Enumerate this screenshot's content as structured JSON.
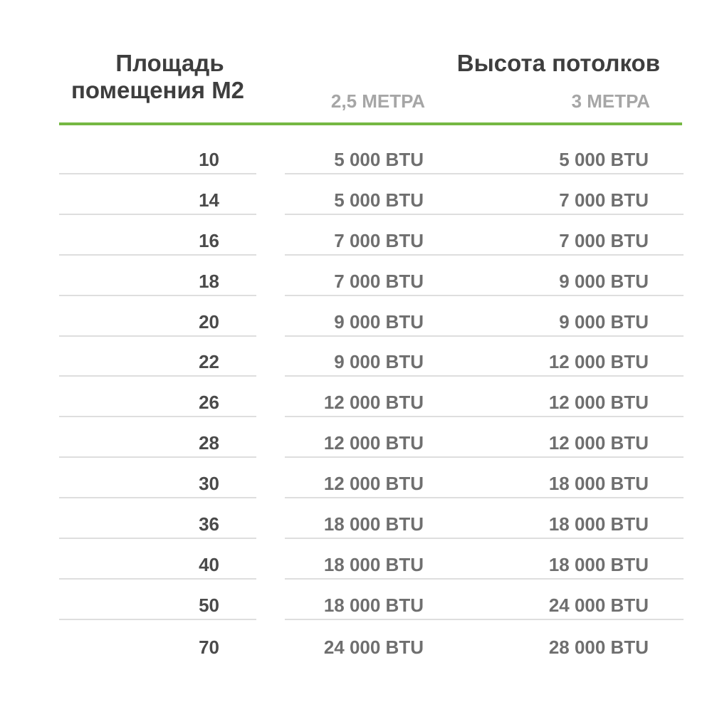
{
  "chart_data": {
    "type": "table",
    "header": {
      "area_col_title": "Площадь помещения М2",
      "area_col_title_lines": [
        "Площадь",
        "помещения М2"
      ],
      "group_title": "Высота потолков",
      "subcolumns": [
        "2,5 МЕТРА",
        "3 МЕТРА"
      ]
    },
    "columns": [
      "Площадь помещения М2",
      "2,5 МЕТРА",
      "3 МЕТРА"
    ],
    "rows": [
      {
        "area": "10",
        "btu_25m": "5 000 BTU",
        "btu_3m": "5 000 BTU"
      },
      {
        "area": "14",
        "btu_25m": "5 000 BTU",
        "btu_3m": "7 000 BTU"
      },
      {
        "area": "16",
        "btu_25m": "7 000 BTU",
        "btu_3m": "7 000 BTU"
      },
      {
        "area": "18",
        "btu_25m": "7 000 BTU",
        "btu_3m": "9 000 BTU"
      },
      {
        "area": "20",
        "btu_25m": "9 000 BTU",
        "btu_3m": "9 000 BTU"
      },
      {
        "area": "22",
        "btu_25m": "9 000 BTU",
        "btu_3m": "12 000 BTU"
      },
      {
        "area": "26",
        "btu_25m": "12 000 BTU",
        "btu_3m": "12 000 BTU"
      },
      {
        "area": "28",
        "btu_25m": "12 000 BTU",
        "btu_3m": "12 000 BTU"
      },
      {
        "area": "30",
        "btu_25m": "12 000 BTU",
        "btu_3m": "18 000 BTU"
      },
      {
        "area": "36",
        "btu_25m": "18 000 BTU",
        "btu_3m": "18 000 BTU"
      },
      {
        "area": "40",
        "btu_25m": "18 000 BTU",
        "btu_3m": "18 000 BTU"
      },
      {
        "area": "50",
        "btu_25m": "18 000 BTU",
        "btu_3m": "24 000 BTU"
      },
      {
        "area": "70",
        "btu_25m": "24 000 BTU",
        "btu_3m": "28 000 BTU"
      }
    ]
  },
  "colors": {
    "background": "#ffffff",
    "accent_green": "#75b843",
    "header_text": "#3e3e3e",
    "area_text": "#4a4a4a",
    "value_text": "#6f6f6f",
    "subheader_text": "#a6a6a6",
    "divider": "#dedede"
  }
}
